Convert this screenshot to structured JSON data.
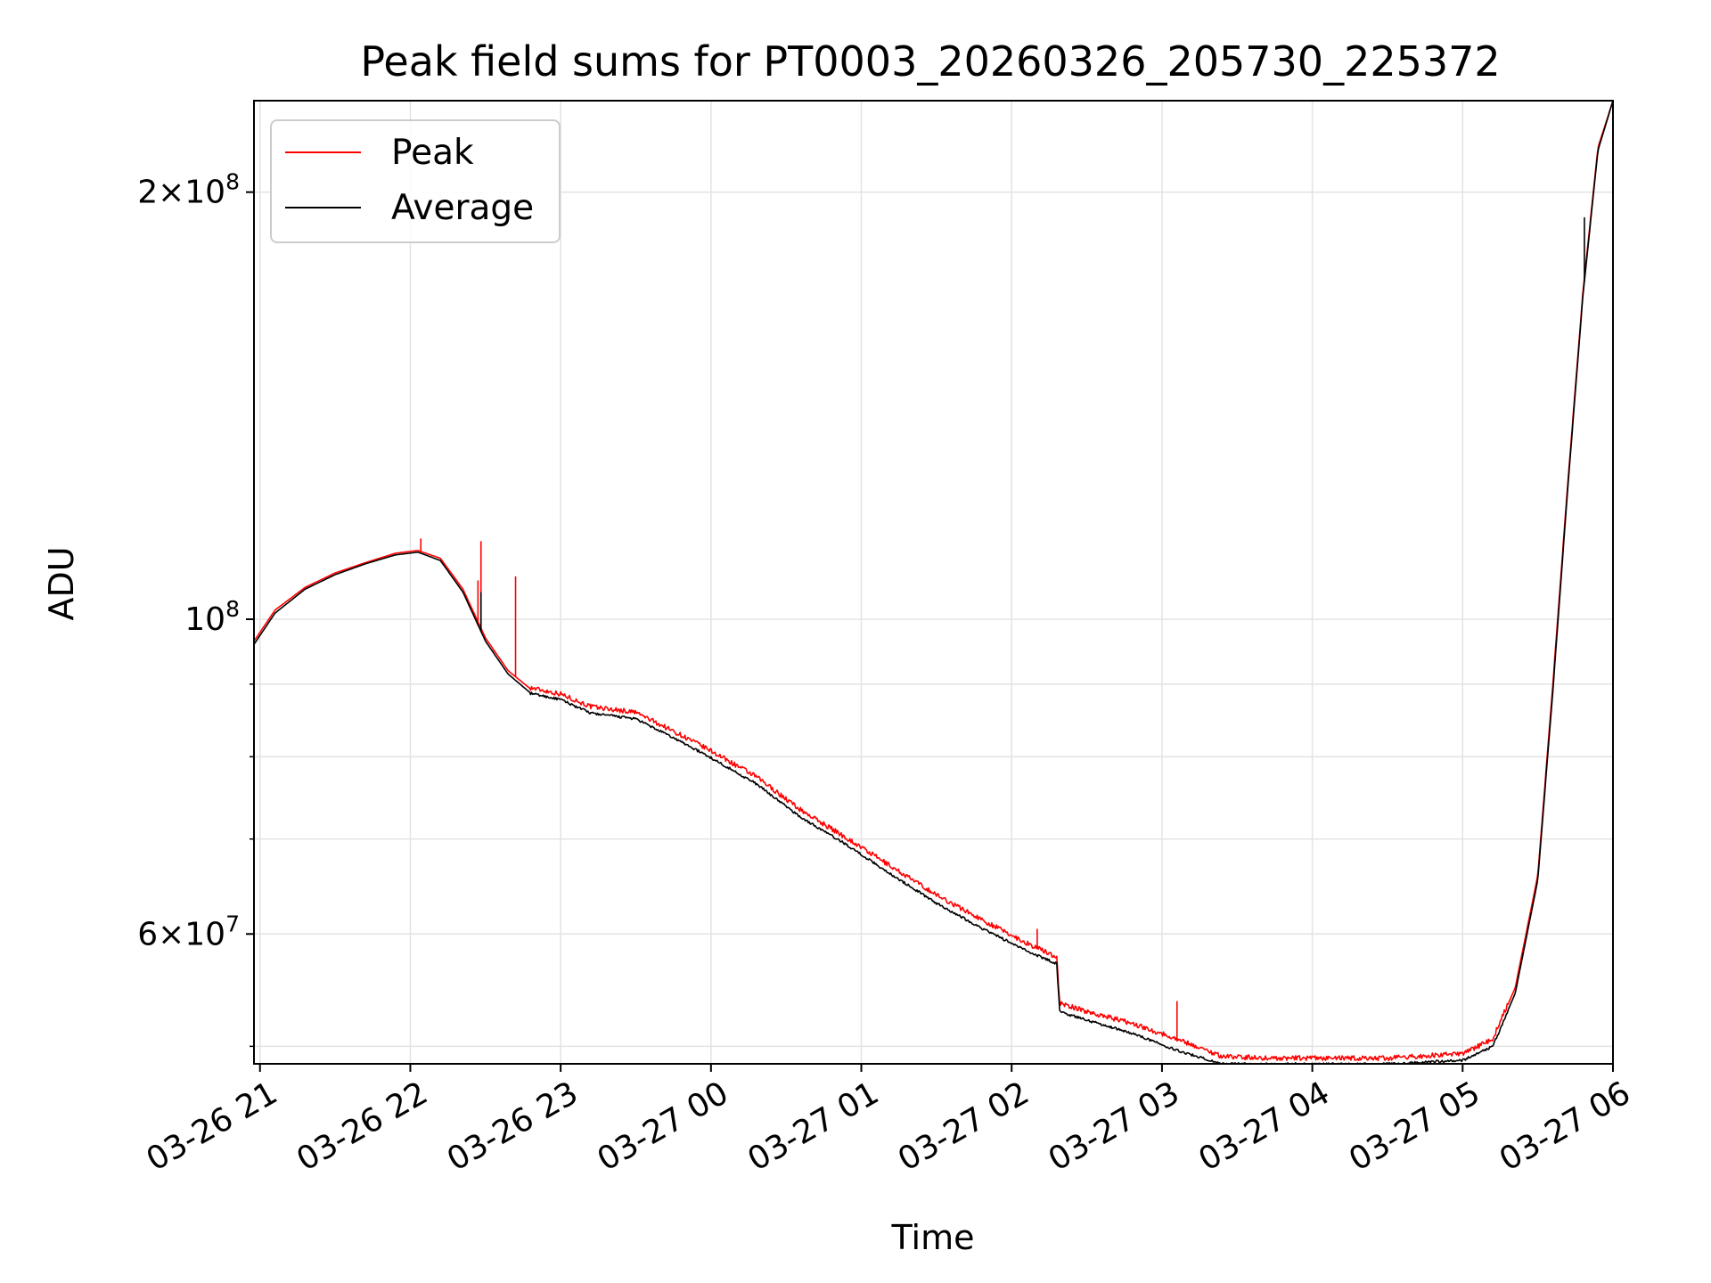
{
  "chart_data": {
    "type": "line",
    "title": "Peak field sums for PT0003_20260326_205730_225372",
    "xlabel": "Time",
    "ylabel": "ADU",
    "yscale": "log",
    "xlim_hours": [
      -0.04,
      9.0
    ],
    "ylim": [
      48600000,
      232000000
    ],
    "grid": true,
    "legend_position": "upper-left",
    "x_ticks": [
      {
        "hour": 0,
        "label": "03-26 21"
      },
      {
        "hour": 1,
        "label": "03-26 22"
      },
      {
        "hour": 2,
        "label": "03-26 23"
      },
      {
        "hour": 3,
        "label": "03-27 00"
      },
      {
        "hour": 4,
        "label": "03-27 01"
      },
      {
        "hour": 5,
        "label": "03-27 02"
      },
      {
        "hour": 6,
        "label": "03-27 03"
      },
      {
        "hour": 7,
        "label": "03-27 04"
      },
      {
        "hour": 8,
        "label": "03-27 05"
      },
      {
        "hour": 9,
        "label": "03-27 06"
      }
    ],
    "y_major_ticks": [
      {
        "value": 60000000,
        "mantissa": "6",
        "exponent": "7"
      },
      {
        "value": 100000000,
        "mantissa": "",
        "exponent": "8"
      },
      {
        "value": 200000000,
        "mantissa": "2",
        "exponent": "8"
      }
    ],
    "y_minor_ticks": [
      50000000,
      70000000,
      80000000,
      90000000
    ],
    "series": [
      {
        "name": "Peak",
        "color": "#ff0000",
        "x_hours": [
          -0.04,
          0.1,
          0.3,
          0.5,
          0.7,
          0.9,
          1.05,
          1.2,
          1.35,
          1.5,
          1.65,
          1.8,
          2.0,
          2.2,
          2.5,
          2.8,
          3.0,
          3.3,
          3.6,
          3.9,
          4.2,
          4.5,
          4.8,
          5.1,
          5.3,
          5.32,
          5.5,
          5.8,
          6.1,
          6.4,
          6.7,
          7.0,
          7.5,
          8.0,
          8.2,
          8.35,
          8.5,
          8.6,
          8.7,
          8.8,
          8.9,
          9.0
        ],
        "values": [
          96500000,
          101500000,
          105300000,
          107800000,
          109600000,
          111300000,
          111800000,
          110400000,
          105000000,
          97000000,
          92000000,
          89300000,
          88400000,
          86600000,
          85800000,
          82700000,
          80600000,
          77300000,
          73200000,
          70000000,
          66800000,
          63800000,
          61300000,
          59000000,
          57700000,
          53500000,
          52800000,
          51800000,
          50500000,
          49100000,
          48950000,
          48950000,
          48950000,
          49300000,
          50500000,
          55000000,
          66000000,
          90000000,
          125000000,
          170000000,
          215000000,
          232000000
        ],
        "spikes": [
          {
            "hour": 1.07,
            "value": 114000000
          },
          {
            "hour": 1.47,
            "value": 113500000
          },
          {
            "hour": 1.45,
            "value": 106500000
          },
          {
            "hour": 1.7,
            "value": 107200000
          },
          {
            "hour": 5.17,
            "value": 60500000
          },
          {
            "hour": 6.1,
            "value": 53800000
          }
        ]
      },
      {
        "name": "Average",
        "color": "#000000",
        "x_hours": [
          -0.04,
          0.1,
          0.3,
          0.5,
          0.7,
          0.9,
          1.05,
          1.2,
          1.35,
          1.5,
          1.65,
          1.8,
          2.0,
          2.2,
          2.5,
          2.8,
          3.0,
          3.3,
          3.6,
          3.9,
          4.2,
          4.5,
          4.8,
          5.1,
          5.3,
          5.32,
          5.5,
          5.8,
          6.1,
          6.4,
          6.7,
          7.0,
          7.5,
          8.0,
          8.2,
          8.35,
          8.5,
          8.6,
          8.7,
          8.8,
          8.9,
          9.0
        ],
        "values": [
          96000000,
          101000000,
          105000000,
          107500000,
          109400000,
          111000000,
          111500000,
          110000000,
          104500000,
          96500000,
          91500000,
          88700000,
          87800000,
          85900000,
          85100000,
          82000000,
          79900000,
          76600000,
          72500000,
          69400000,
          66100000,
          63100000,
          60600000,
          58400000,
          57200000,
          52900000,
          52200000,
          51100000,
          49700000,
          48600000,
          48600000,
          48600000,
          48600000,
          48900000,
          50000000,
          54500000,
          65500000,
          89000000,
          124000000,
          169000000,
          214000000,
          232000000
        ],
        "spikes": [
          {
            "hour": 1.47,
            "value": 104500000
          },
          {
            "hour": 8.81,
            "value": 192000000
          }
        ]
      }
    ]
  }
}
